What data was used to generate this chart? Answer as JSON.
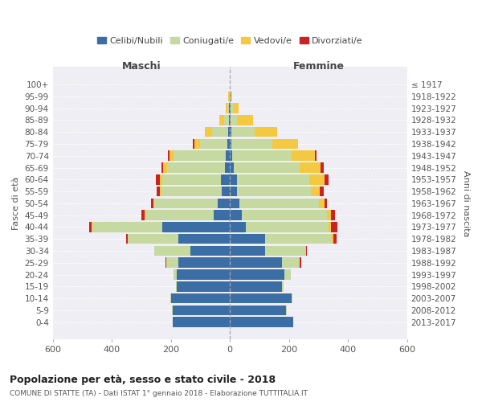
{
  "age_groups": [
    "0-4",
    "5-9",
    "10-14",
    "15-19",
    "20-24",
    "25-29",
    "30-34",
    "35-39",
    "40-44",
    "45-49",
    "50-54",
    "55-59",
    "60-64",
    "65-69",
    "70-74",
    "75-79",
    "80-84",
    "85-89",
    "90-94",
    "95-99",
    "100+"
  ],
  "birth_years": [
    "2013-2017",
    "2008-2012",
    "2003-2007",
    "1998-2002",
    "1993-1997",
    "1988-1992",
    "1983-1987",
    "1978-1982",
    "1973-1977",
    "1968-1972",
    "1963-1967",
    "1958-1962",
    "1953-1957",
    "1948-1952",
    "1943-1947",
    "1938-1942",
    "1933-1937",
    "1928-1932",
    "1923-1927",
    "1918-1922",
    "≤ 1917"
  ],
  "colors": {
    "celibi": "#3a6ea5",
    "coniugati": "#c5d9a0",
    "vedovi": "#f5c842",
    "divorziati": "#cc2222"
  },
  "maschi": {
    "celibi": [
      195,
      195,
      200,
      180,
      180,
      175,
      135,
      175,
      230,
      55,
      40,
      28,
      30,
      18,
      15,
      10,
      5,
      4,
      2,
      1,
      0
    ],
    "coniugati": [
      0,
      2,
      2,
      4,
      10,
      40,
      120,
      170,
      235,
      230,
      215,
      205,
      200,
      195,
      175,
      90,
      55,
      15,
      8,
      2,
      0
    ],
    "vedovi": [
      0,
      0,
      0,
      0,
      0,
      0,
      0,
      2,
      3,
      3,
      3,
      5,
      8,
      12,
      15,
      20,
      25,
      18,
      5,
      2,
      0
    ],
    "divorziati": [
      0,
      0,
      0,
      0,
      0,
      2,
      2,
      5,
      10,
      12,
      8,
      10,
      12,
      8,
      5,
      5,
      0,
      0,
      0,
      0,
      0
    ]
  },
  "femmine": {
    "celibi": [
      215,
      190,
      210,
      175,
      185,
      175,
      120,
      120,
      55,
      40,
      32,
      25,
      25,
      12,
      8,
      5,
      4,
      3,
      2,
      1,
      0
    ],
    "coniugati": [
      0,
      2,
      2,
      8,
      20,
      60,
      135,
      225,
      280,
      290,
      270,
      250,
      245,
      225,
      200,
      140,
      80,
      20,
      8,
      2,
      0
    ],
    "vedovi": [
      0,
      0,
      0,
      0,
      0,
      2,
      2,
      6,
      8,
      12,
      18,
      30,
      50,
      70,
      80,
      85,
      75,
      55,
      20,
      5,
      0
    ],
    "divorziati": [
      0,
      0,
      0,
      0,
      2,
      5,
      5,
      10,
      20,
      15,
      10,
      12,
      15,
      10,
      5,
      2,
      0,
      0,
      0,
      0,
      0
    ]
  },
  "xlim": 600,
  "title": "Popolazione per età, sesso e stato civile - 2018",
  "subtitle": "COMUNE DI STATTE (TA) - Dati ISTAT 1° gennaio 2018 - Elaborazione TUTTITALIA.IT",
  "ylabel_left": "Fasce di età",
  "ylabel_right": "Anni di nascita",
  "xlabel_maschi": "Maschi",
  "xlabel_femmine": "Femmine",
  "legend_labels": [
    "Celibi/Nubili",
    "Coniugati/e",
    "Vedovi/e",
    "Divorziati/e"
  ],
  "plot_bg_color": "#eeeef4"
}
